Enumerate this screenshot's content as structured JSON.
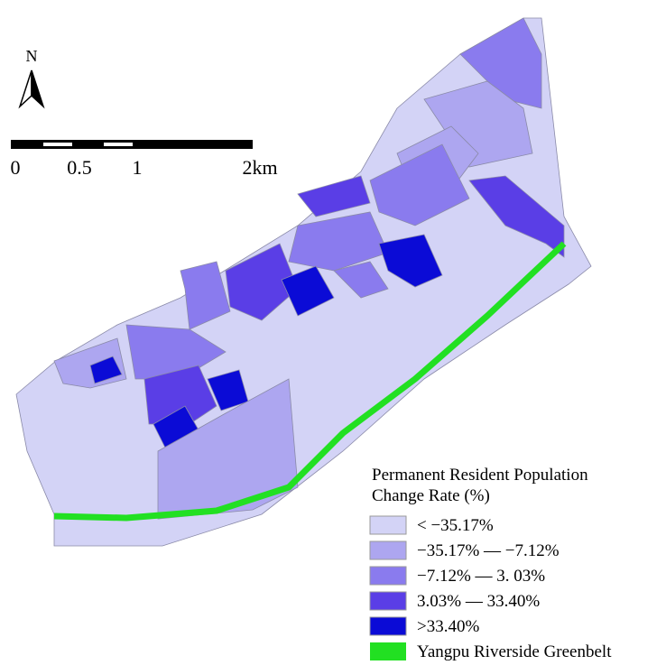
{
  "north": "N",
  "scale_bar": {
    "labels": [
      "0",
      "0.5",
      "1",
      "2km"
    ]
  },
  "legend": {
    "title_lines": [
      "Permanent Resident Population",
      "Change Rate (%)"
    ],
    "items": [
      {
        "label": "< −35.17%",
        "color": "#d3d3f6"
      },
      {
        "label": "−35.17% — −7.12%",
        "color": "#ada6f0"
      },
      {
        "label": "−7.12% — 3. 03%",
        "color": "#8a7bee"
      },
      {
        "label": "3.03% — 33.40%",
        "color": "#5a3ee6"
      },
      {
        "label": ">33.40%",
        "color": "#0b0bd6"
      },
      {
        "label": "Yangpu Riverside Greenbelt",
        "color": "#22e022"
      }
    ]
  }
}
